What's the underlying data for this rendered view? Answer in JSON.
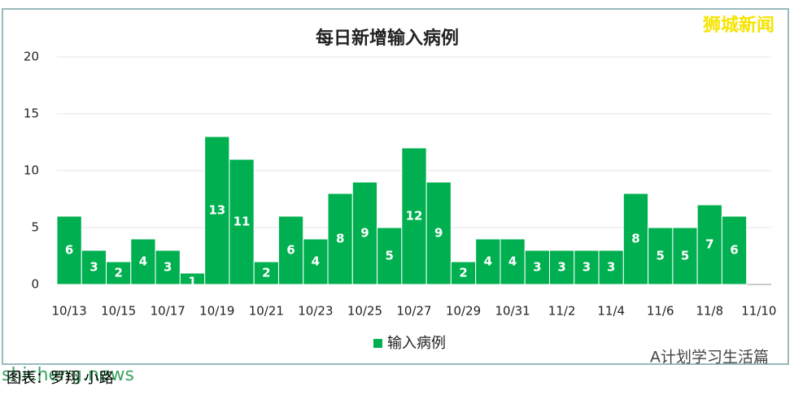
{
  "chart_data": {
    "type": "bar",
    "title": "每日新增输入病例",
    "categories": [
      "10/13",
      null,
      "10/15",
      null,
      "10/17",
      null,
      "10/19",
      null,
      "10/21",
      null,
      "10/23",
      null,
      "10/25",
      null,
      "10/27",
      null,
      "10/29",
      null,
      "10/31",
      null,
      "11/2",
      null,
      "11/4",
      null,
      "11/6",
      null,
      "11/8",
      null,
      "11/10"
    ],
    "series": [
      {
        "name": "输入病例",
        "color": "#00b050",
        "values": [
          6,
          3,
          2,
          4,
          3,
          1,
          13,
          11,
          2,
          6,
          4,
          8,
          9,
          5,
          12,
          9,
          2,
          4,
          4,
          3,
          3,
          3,
          3,
          8,
          5,
          5,
          7,
          6,
          null
        ]
      }
    ],
    "ylim": [
      0,
      20
    ],
    "yticks": [
      0,
      5,
      10,
      15,
      20
    ],
    "grid": true,
    "legend": "bottom"
  },
  "watermarks": {
    "top_right": "狮城新闻",
    "bottom_right": "A计划学习生活篇",
    "overlay": "shicheng.news"
  },
  "caption": "图表：罗翔 小路"
}
